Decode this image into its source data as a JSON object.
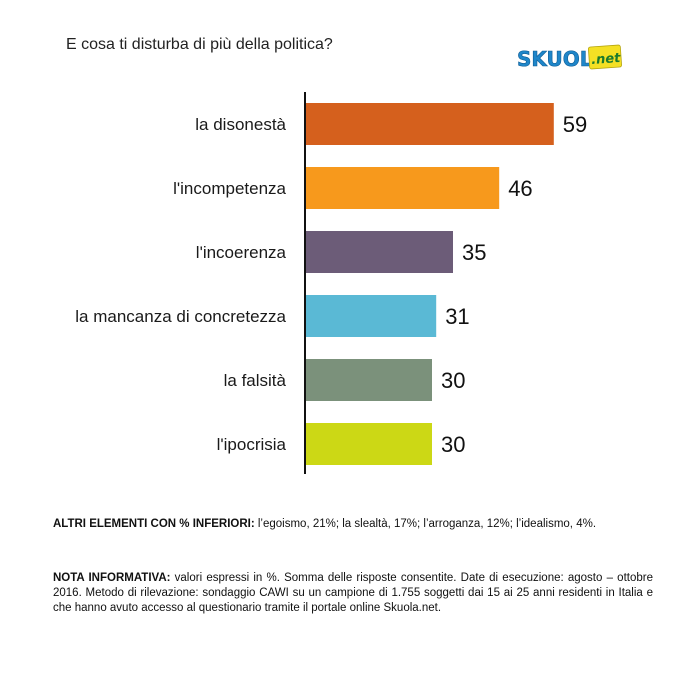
{
  "chart_data": {
    "type": "bar",
    "orientation": "horizontal",
    "title": "E cosa ti disturba di più della politica?",
    "categories": [
      "la disonestà",
      "l'incompetenza",
      "l'incoerenza",
      "la mancanza di concretezza",
      "la falsità",
      "l'ipocrisia"
    ],
    "values": [
      59,
      46,
      35,
      31,
      30,
      30
    ],
    "colors": [
      "#d5601d",
      "#f7991c",
      "#6c5c78",
      "#5ab9d5",
      "#7b917b",
      "#ccd815"
    ],
    "value_labels": [
      "59",
      "46",
      "35",
      "31",
      "30",
      "30"
    ],
    "xlim": [
      0,
      65
    ],
    "grid": false,
    "legend": "none"
  },
  "logo": {
    "text_main": "SKUOLa",
    "text_suffix": ".net",
    "main_color": "#1f86c9",
    "suffix_bg": "#f4e024"
  },
  "notes": {
    "other_label": "ALTRI ELEMENTI CON % INFERIORI:",
    "other_text": " l’egoismo, 21%; la slealtà, 17%; l’arroganza, 12%; l’idealismo, 4%.",
    "info_label": "NOTA INFORMATIVA:",
    "info_text": " valori espressi in %. Somma delle risposte consentite. Date di esecuzione: agosto – ottobre 2016. Metodo di rilevazione: sondaggio CAWI su un campione di 1.755 soggetti dai 15 ai 25 anni residenti in Italia e che hanno avuto accesso al questionario tramite il portale online Skuola.net."
  }
}
